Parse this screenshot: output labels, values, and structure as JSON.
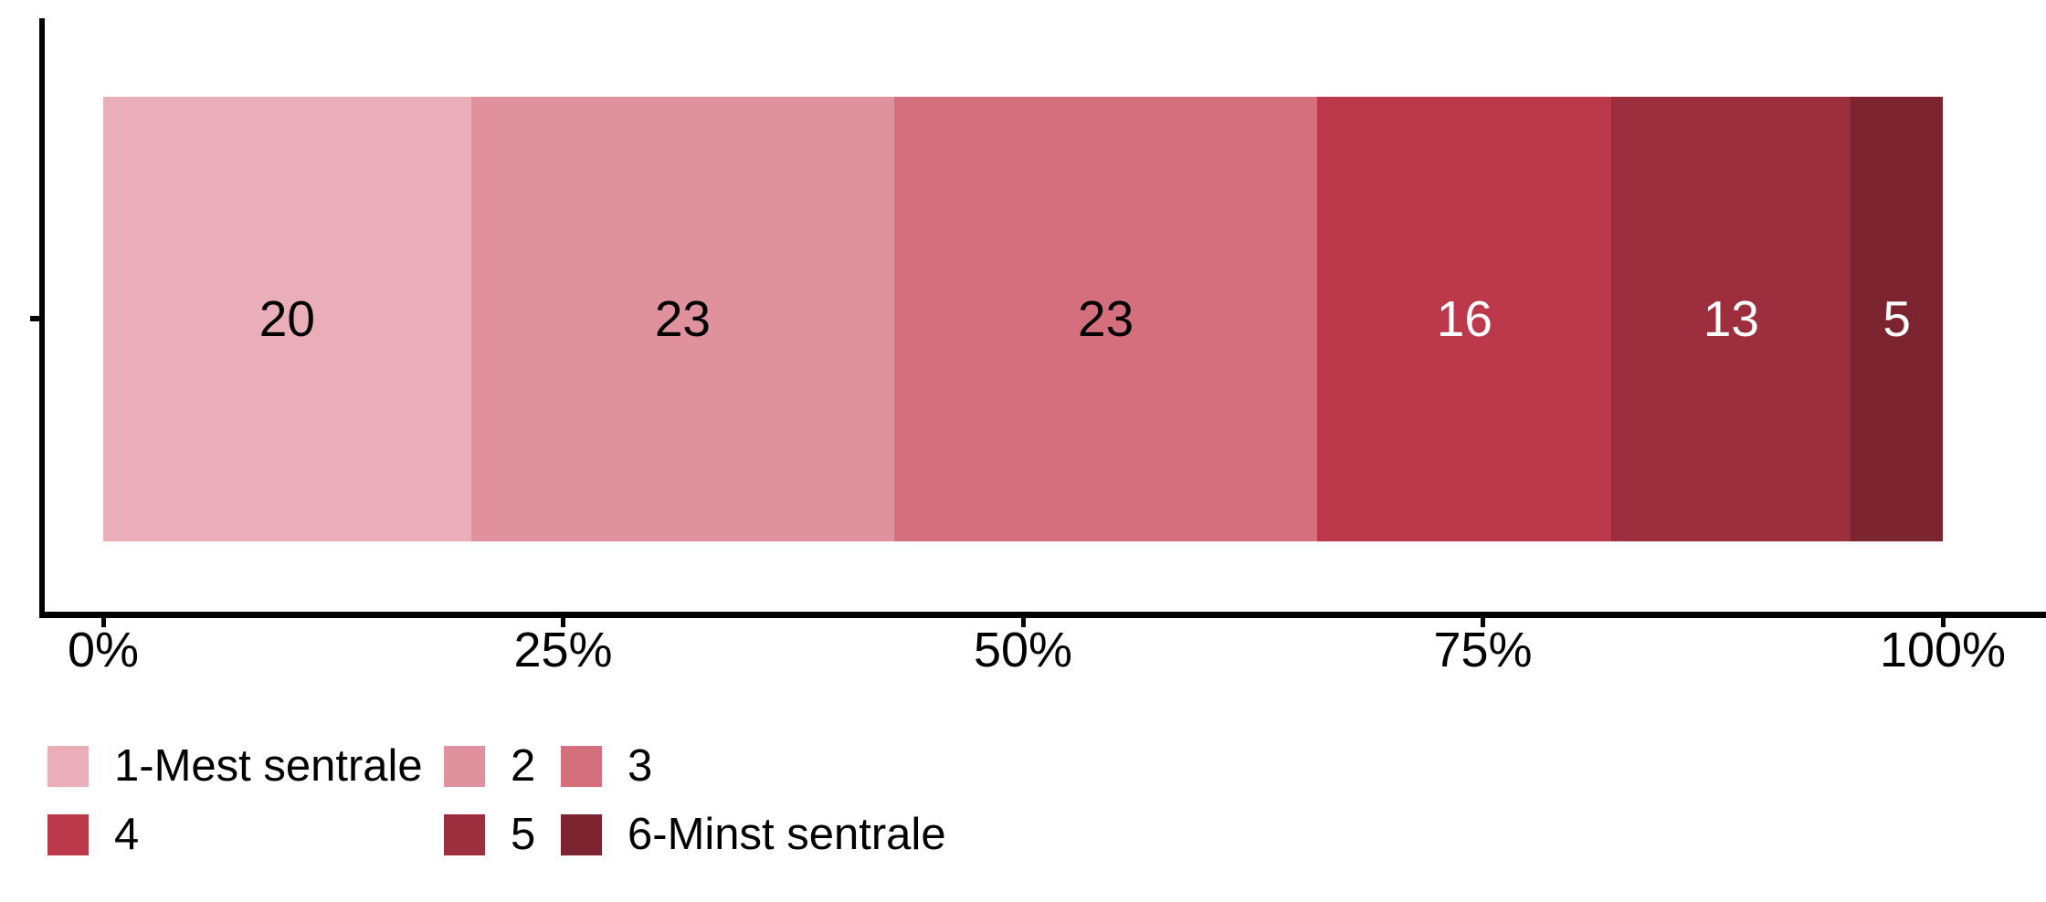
{
  "chart_data": {
    "type": "bar",
    "stacked": true,
    "orientation": "horizontal",
    "title": "",
    "categories": [
      ""
    ],
    "series": [
      {
        "name": "1-Mest sentrale",
        "value": 20,
        "color": "#e9aeb7",
        "label_color": "#000000"
      },
      {
        "name": "2",
        "value": 23,
        "color": "#df919d",
        "label_color": "#000000"
      },
      {
        "name": "3",
        "value": 23,
        "color": "#d4707e",
        "label_color": "#000000"
      },
      {
        "name": "4",
        "value": 16,
        "color": "#bb394b",
        "label_color": "#ffffff"
      },
      {
        "name": "5",
        "value": 13,
        "color": "#9d2e3d",
        "label_color": "#ffffff"
      },
      {
        "name": "6-Minst sentrale",
        "value": 5,
        "color": "#7c2430",
        "label_color": "#ffffff"
      }
    ],
    "x_ticks": [
      {
        "label": "0%",
        "value": 0
      },
      {
        "label": "25%",
        "value": 25
      },
      {
        "label": "50%",
        "value": 50
      },
      {
        "label": "75%",
        "value": 75
      },
      {
        "label": "100%",
        "value": 100
      }
    ],
    "xlim": [
      0,
      100
    ],
    "xlabel": "",
    "ylabel": "",
    "grid": false,
    "legend_position": "bottom-left",
    "legend_layout": "2-rows-3-columns",
    "axis_color": "#000000",
    "background_color": "#ffffff"
  }
}
